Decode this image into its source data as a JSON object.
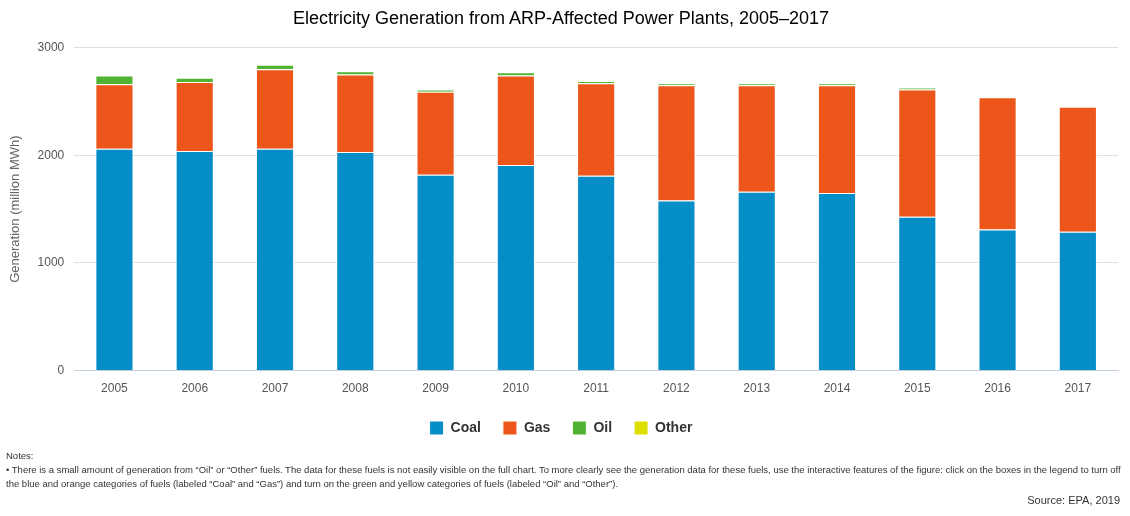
{
  "chart_data": {
    "type": "bar",
    "title": "Electricity Generation from ARP-Affected Power Plants, 2005–2017",
    "ylabel": "Generation (million MWh)",
    "categories": [
      "2005",
      "2006",
      "2007",
      "2008",
      "2009",
      "2010",
      "2011",
      "2012",
      "2013",
      "2014",
      "2015",
      "2016",
      "2017"
    ],
    "series": [
      {
        "name": "Coal",
        "color": "#058dc7",
        "values": [
          2060,
          2040,
          2060,
          2030,
          1820,
          1910,
          1810,
          1580,
          1660,
          1650,
          1430,
          1310,
          1290
        ]
      },
      {
        "name": "Gas",
        "color": "#ed561b",
        "values": [
          600,
          640,
          740,
          720,
          770,
          830,
          860,
          1070,
          990,
          1000,
          1180,
          1230,
          1160
        ]
      },
      {
        "name": "Oil",
        "color": "#50b432",
        "values": [
          80,
          40,
          40,
          30,
          20,
          30,
          20,
          20,
          20,
          20,
          20,
          null,
          null
        ]
      },
      {
        "name": "Other",
        "color": "#dddf00",
        "values": [
          null,
          null,
          null,
          null,
          null,
          null,
          null,
          null,
          null,
          null,
          null,
          null,
          null
        ]
      }
    ],
    "stacked": true,
    "ylim": [
      0,
      3000
    ],
    "yticks": [
      0,
      1000,
      2000,
      3000
    ],
    "grid": "y",
    "legend": "bottom",
    "annotations": [
      "Notes:",
      "• There is a small amount of generation from “Oil” or “Other” fuels. The data for these fuels is not easily visible on the full chart. To more clearly see the generation data for these fuels, use the interactive features of the figure: click on the boxes in the legend to turn off the blue and orange categories of fuels (labeled “Coal” and “Gas”) and turn on the green and yellow categories of fuels (labeled “Oil” and “Other”).",
      "Source: EPA, 2019"
    ]
  }
}
